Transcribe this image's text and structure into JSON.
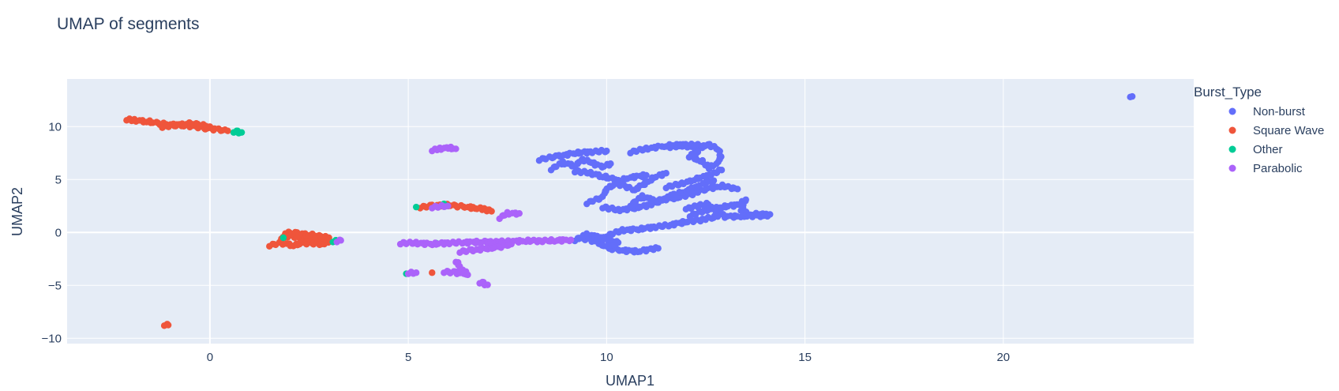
{
  "chart_data": {
    "type": "scatter",
    "title": "UMAP of segments",
    "xlabel": "UMAP1",
    "ylabel": "UMAP2",
    "xlim": [
      -3.6,
      24.8
    ],
    "ylim": [
      -10.5,
      14.5
    ],
    "xticks": [
      0,
      5,
      10,
      15,
      20
    ],
    "yticks": [
      -10,
      -5,
      0,
      5,
      10
    ],
    "ytick_labels": [
      "−10",
      "−5",
      "0",
      "5",
      "10"
    ],
    "grid": true,
    "legend_title": "Burst_Type",
    "legend_position": "right",
    "series": [
      {
        "name": "Non-burst",
        "color": "#636efa",
        "segments": [
          [
            [
              8.3,
              6.9
            ],
            [
              8.8,
              7.2
            ],
            [
              9.2,
              7.5
            ],
            [
              9.6,
              7.6
            ],
            [
              10.0,
              7.7
            ]
          ],
          [
            [
              8.6,
              6.0
            ],
            [
              8.9,
              6.6
            ],
            [
              9.2,
              6.3
            ],
            [
              9.4,
              6.9
            ],
            [
              9.6,
              6.6
            ],
            [
              9.9,
              6.2
            ],
            [
              10.1,
              6.5
            ]
          ],
          [
            [
              9.2,
              5.8
            ],
            [
              9.6,
              5.6
            ],
            [
              9.9,
              5.3
            ],
            [
              10.3,
              4.9
            ],
            [
              10.6,
              5.2
            ],
            [
              11.0,
              5.4
            ]
          ],
          [
            [
              9.5,
              2.8
            ],
            [
              9.9,
              3.3
            ],
            [
              10.0,
              4.2
            ],
            [
              10.3,
              4.6
            ],
            [
              10.7,
              4.0
            ],
            [
              11.2,
              5.2
            ],
            [
              11.5,
              5.6
            ]
          ],
          [
            [
              9.9,
              2.4
            ],
            [
              10.3,
              2.1
            ],
            [
              10.7,
              2.3
            ],
            [
              11.1,
              2.6
            ],
            [
              11.4,
              3.1
            ],
            [
              11.8,
              3.3
            ],
            [
              12.2,
              3.7
            ],
            [
              12.5,
              4.1
            ],
            [
              12.9,
              4.4
            ],
            [
              13.3,
              4.1
            ]
          ],
          [
            [
              10.6,
              2.6
            ],
            [
              10.9,
              3.4
            ],
            [
              11.3,
              2.9
            ],
            [
              11.7,
              3.6
            ],
            [
              12.0,
              3.9
            ],
            [
              12.3,
              4.4
            ],
            [
              12.7,
              4.9
            ]
          ],
          [
            [
              11.5,
              4.3
            ],
            [
              11.9,
              4.6
            ],
            [
              12.2,
              5.0
            ],
            [
              12.6,
              5.4
            ],
            [
              12.9,
              5.9
            ]
          ],
          [
            [
              11.6,
              8.1
            ],
            [
              12.0,
              8.2
            ],
            [
              12.3,
              7.9
            ],
            [
              12.6,
              8.3
            ],
            [
              12.8,
              7.8
            ],
            [
              12.9,
              7.2
            ],
            [
              12.8,
              6.6
            ],
            [
              12.6,
              6.1
            ],
            [
              12.4,
              6.7
            ],
            [
              12.1,
              7.2
            ],
            [
              12.3,
              7.6
            ]
          ],
          [
            [
              10.6,
              7.6
            ],
            [
              11.0,
              7.9
            ],
            [
              11.5,
              8.2
            ],
            [
              12.0,
              8.3
            ],
            [
              12.5,
              8.2
            ]
          ],
          [
            [
              12.1,
              1.6
            ],
            [
              12.5,
              2.1
            ],
            [
              12.9,
              2.4
            ],
            [
              13.3,
              2.6
            ],
            [
              13.5,
              3.1
            ],
            [
              13.4,
              2.1
            ],
            [
              13.6,
              1.6
            ],
            [
              13.9,
              1.8
            ],
            [
              14.1,
              1.6
            ],
            [
              13.0,
              1.5
            ],
            [
              12.5,
              2.7
            ],
            [
              12.0,
              2.2
            ]
          ],
          [
            [
              9.3,
              -0.5
            ],
            [
              9.6,
              -0.7
            ],
            [
              9.8,
              -1.0
            ],
            [
              10.1,
              -1.5
            ],
            [
              10.4,
              -1.7
            ],
            [
              10.8,
              -1.8
            ],
            [
              11.1,
              -1.6
            ],
            [
              11.3,
              -1.5
            ]
          ],
          [
            [
              10.0,
              -0.3
            ],
            [
              10.4,
              0.2
            ],
            [
              10.8,
              0.3
            ],
            [
              11.2,
              0.5
            ],
            [
              11.6,
              0.7
            ],
            [
              12.0,
              1.0
            ],
            [
              12.4,
              1.2
            ],
            [
              12.8,
              1.5
            ]
          ],
          [
            [
              9.2,
              -0.7
            ],
            [
              9.5,
              -0.2
            ],
            [
              10.0,
              -0.6
            ],
            [
              10.3,
              -1.0
            ],
            [
              10.0,
              -1.3
            ]
          ],
          [
            [
              23.2,
              12.9
            ],
            [
              23.25,
              12.85
            ]
          ]
        ]
      },
      {
        "name": "Square Wave",
        "color": "#ef553b",
        "segments": [
          [
            [
              -2.1,
              10.7
            ],
            [
              -1.9,
              10.6
            ],
            [
              -1.6,
              10.5
            ],
            [
              -1.3,
              10.3
            ],
            [
              -1.0,
              10.2
            ],
            [
              -0.7,
              10.1
            ],
            [
              -0.4,
              10.0
            ],
            [
              -0.1,
              9.85
            ],
            [
              0.2,
              9.7
            ],
            [
              0.45,
              9.6
            ]
          ],
          [
            [
              -1.2,
              10.0
            ],
            [
              -0.9,
              10.1
            ],
            [
              -0.6,
              10.3
            ],
            [
              -0.3,
              10.2
            ],
            [
              0.0,
              10.0
            ]
          ],
          [
            [
              1.5,
              -1.2
            ],
            [
              1.8,
              -1.0
            ],
            [
              2.1,
              -1.2
            ],
            [
              2.4,
              -1.0
            ],
            [
              2.8,
              -1.1
            ],
            [
              3.0,
              -0.9
            ],
            [
              2.7,
              -0.6
            ],
            [
              2.3,
              -0.5
            ],
            [
              2.0,
              -0.3
            ],
            [
              1.8,
              -0.6
            ]
          ],
          [
            [
              1.9,
              0.0
            ],
            [
              2.2,
              -0.1
            ],
            [
              2.5,
              -0.2
            ],
            [
              2.8,
              -0.4
            ],
            [
              3.0,
              -0.5
            ]
          ],
          [
            [
              5.3,
              2.4
            ],
            [
              5.6,
              2.5
            ],
            [
              5.9,
              2.6
            ],
            [
              6.2,
              2.5
            ],
            [
              6.5,
              2.4
            ],
            [
              6.7,
              2.3
            ],
            [
              6.9,
              2.2
            ],
            [
              7.1,
              2.0
            ]
          ],
          [
            [
              -1.15,
              -8.7
            ],
            [
              -1.05,
              -8.75
            ]
          ],
          [
            [
              5.6,
              -3.8
            ]
          ]
        ]
      },
      {
        "name": "Other",
        "color": "#00cc96",
        "segments": [
          [
            [
              0.6,
              9.55
            ],
            [
              0.7,
              9.5
            ],
            [
              0.8,
              9.45
            ]
          ],
          [
            [
              1.85,
              -0.5
            ]
          ],
          [
            [
              3.1,
              -0.8
            ],
            [
              3.2,
              -0.8
            ]
          ],
          [
            [
              5.2,
              2.4
            ]
          ],
          [
            [
              5.9,
              2.7
            ]
          ],
          [
            [
              4.95,
              -3.9
            ]
          ],
          [
            [
              5.7,
              -1.0
            ]
          ]
        ]
      },
      {
        "name": "Parabolic",
        "color": "#ab63fa",
        "segments": [
          [
            [
              5.6,
              7.8
            ],
            [
              5.8,
              7.9
            ],
            [
              6.0,
              8.0
            ],
            [
              6.2,
              7.9
            ]
          ],
          [
            [
              4.8,
              -1.0
            ],
            [
              5.2,
              -1.0
            ],
            [
              5.6,
              -1.1
            ],
            [
              6.0,
              -1.0
            ],
            [
              6.4,
              -0.95
            ],
            [
              6.8,
              -0.9
            ],
            [
              7.2,
              -0.9
            ],
            [
              7.6,
              -0.85
            ],
            [
              8.0,
              -0.8
            ],
            [
              8.4,
              -0.8
            ],
            [
              8.8,
              -0.75
            ],
            [
              9.1,
              -0.7
            ]
          ],
          [
            [
              6.3,
              -1.8
            ],
            [
              6.6,
              -1.7
            ],
            [
              7.0,
              -1.5
            ],
            [
              7.3,
              -1.4
            ],
            [
              7.6,
              -1.1
            ]
          ],
          [
            [
              6.2,
              -2.7
            ],
            [
              6.3,
              -3.3
            ],
            [
              6.4,
              -3.7
            ],
            [
              6.5,
              -4.0
            ]
          ],
          [
            [
              5.9,
              -3.7
            ],
            [
              6.2,
              -3.8
            ],
            [
              6.4,
              -3.9
            ]
          ],
          [
            [
              6.8,
              -4.7
            ],
            [
              6.9,
              -4.8
            ],
            [
              7.0,
              -4.95
            ]
          ],
          [
            [
              5.0,
              -3.8
            ],
            [
              5.2,
              -3.8
            ]
          ],
          [
            [
              7.3,
              1.4
            ],
            [
              7.5,
              1.8
            ],
            [
              7.8,
              1.8
            ]
          ],
          [
            [
              5.6,
              2.4
            ],
            [
              6.0,
              2.5
            ]
          ],
          [
            [
              3.2,
              -0.8
            ],
            [
              3.3,
              -0.75
            ]
          ]
        ]
      }
    ]
  }
}
